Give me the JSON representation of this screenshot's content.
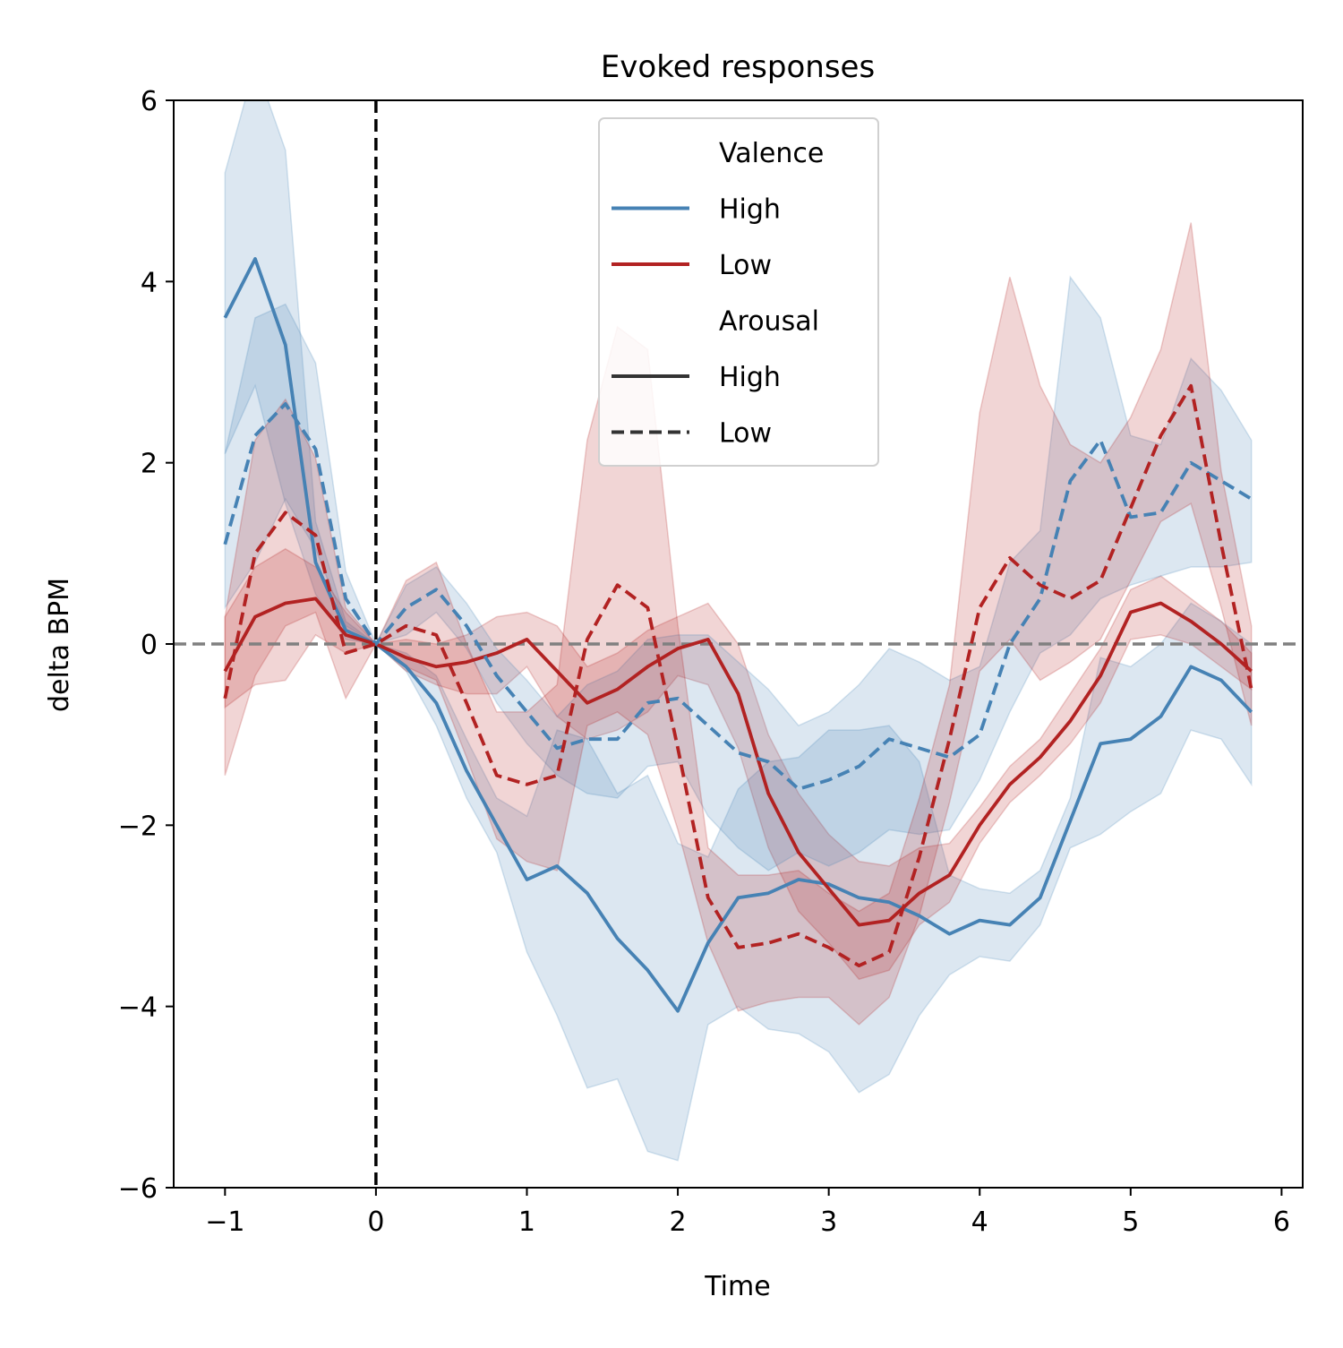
{
  "chart_data": {
    "type": "line",
    "title": "Evoked responses",
    "xlabel": "Time",
    "ylabel": "delta BPM",
    "xlim": [
      -1.34,
      6.14
    ],
    "ylim": [
      -6,
      6
    ],
    "xticks": [
      -1,
      0,
      1,
      2,
      3,
      4,
      5,
      6
    ],
    "xtick_labels": [
      "−1",
      "0",
      "1",
      "2",
      "3",
      "4",
      "5",
      "6"
    ],
    "yticks": [
      -6,
      -4,
      -2,
      0,
      2,
      4,
      6
    ],
    "ytick_labels": [
      "−6",
      "−4",
      "−2",
      "0",
      "2",
      "4",
      "6"
    ],
    "grid": false,
    "legend_position": "top-center",
    "reference_lines": [
      {
        "orientation": "horizontal",
        "value": 0,
        "style": "dashed",
        "color": "#808080"
      },
      {
        "orientation": "vertical",
        "value": 0,
        "style": "dashed",
        "color": "#000000"
      }
    ],
    "legend": {
      "sections": [
        {
          "heading": "Valence",
          "items": [
            {
              "label": "High",
              "color": "#4682b4",
              "style": "solid"
            },
            {
              "label": "Low",
              "color": "#b22222",
              "style": "solid"
            }
          ]
        },
        {
          "heading": "Arousal",
          "items": [
            {
              "label": "High",
              "color": "#333333",
              "style": "solid"
            },
            {
              "label": "Low",
              "color": "#333333",
              "style": "dashed"
            }
          ]
        }
      ]
    },
    "x": [
      -1.0,
      -0.8,
      -0.6,
      -0.4,
      -0.2,
      0.0,
      0.2,
      0.4,
      0.6,
      0.8,
      1.0,
      1.2,
      1.4,
      1.6,
      1.8,
      2.0,
      2.2,
      2.4,
      2.6,
      2.8,
      3.0,
      3.2,
      3.4,
      3.6,
      3.8,
      4.0,
      4.2,
      4.4,
      4.6,
      4.8,
      5.0,
      5.2,
      5.4,
      5.6,
      5.8
    ],
    "series": [
      {
        "valence": "High",
        "arousal": "High",
        "color": "#4682b4",
        "style": "solid",
        "values": [
          3.6,
          4.25,
          3.3,
          0.9,
          0.15,
          0.0,
          -0.25,
          -0.65,
          -1.4,
          -2.0,
          -2.6,
          -2.45,
          -2.75,
          -3.25,
          -3.6,
          -4.05,
          -3.3,
          -2.8,
          -2.75,
          -2.6,
          -2.65,
          -2.8,
          -2.85,
          -3.0,
          -3.2,
          -3.05,
          -3.1,
          -2.8,
          -1.95,
          -1.1,
          -1.05,
          -0.8,
          -0.25,
          -0.4,
          -0.75
        ],
        "lower": [
          2.1,
          2.85,
          1.55,
          0.55,
          0.05,
          0.0,
          -0.3,
          -0.9,
          -1.7,
          -2.3,
          -3.4,
          -4.1,
          -4.9,
          -4.8,
          -5.6,
          -5.7,
          -4.2,
          -4.0,
          -4.25,
          -4.3,
          -4.5,
          -4.95,
          -4.75,
          -4.1,
          -3.65,
          -3.45,
          -3.5,
          -3.1,
          -2.25,
          -2.1,
          -1.85,
          -1.65,
          -0.95,
          -1.05,
          -1.55
        ],
        "upper": [
          5.2,
          6.4,
          5.45,
          1.35,
          0.25,
          0.0,
          -0.1,
          -0.35,
          -1.05,
          -1.7,
          -1.9,
          -0.95,
          -1.05,
          -1.65,
          -1.45,
          -2.2,
          -2.35,
          -1.6,
          -1.3,
          -1.25,
          -0.95,
          -0.95,
          -0.9,
          -1.3,
          -2.55,
          -2.7,
          -2.75,
          -2.5,
          -1.7,
          -0.15,
          -0.25,
          0.0,
          0.45,
          0.25,
          0.0
        ]
      },
      {
        "valence": "Low",
        "arousal": "High",
        "color": "#b22222",
        "style": "solid",
        "values": [
          -0.3,
          0.3,
          0.45,
          0.5,
          0.1,
          0.0,
          -0.15,
          -0.25,
          -0.2,
          -0.1,
          0.05,
          -0.3,
          -0.65,
          -0.5,
          -0.25,
          -0.05,
          0.05,
          -0.55,
          -1.65,
          -2.3,
          -2.7,
          -3.1,
          -3.05,
          -2.75,
          -2.55,
          -2.0,
          -1.55,
          -1.25,
          -0.85,
          -0.35,
          0.35,
          0.45,
          0.25,
          0.0,
          -0.3
        ],
        "lower": [
          -0.7,
          -0.45,
          -0.4,
          0.1,
          -0.1,
          0.0,
          -0.3,
          -0.45,
          -0.55,
          -0.55,
          -0.25,
          -0.8,
          -1.05,
          -0.95,
          -0.75,
          -0.35,
          -0.45,
          -1.15,
          -2.25,
          -2.95,
          -3.3,
          -3.7,
          -3.6,
          -3.1,
          -2.85,
          -2.2,
          -1.75,
          -1.45,
          -1.1,
          -0.65,
          0.05,
          0.1,
          0.0,
          -0.25,
          -0.5
        ],
        "upper": [
          0.3,
          0.85,
          1.05,
          0.85,
          0.35,
          0.0,
          0.05,
          0.0,
          0.1,
          0.3,
          0.35,
          0.2,
          -0.25,
          -0.1,
          0.15,
          0.3,
          0.45,
          0.0,
          -1.0,
          -1.65,
          -2.1,
          -2.4,
          -2.45,
          -2.25,
          -2.2,
          -1.8,
          -1.35,
          -1.05,
          -0.55,
          -0.05,
          0.6,
          0.75,
          0.5,
          0.25,
          -0.1
        ]
      },
      {
        "valence": "High",
        "arousal": "Low",
        "color": "#4682b4",
        "style": "dashed",
        "values": [
          1.1,
          2.3,
          2.65,
          2.15,
          0.5,
          0.0,
          0.4,
          0.6,
          0.2,
          -0.35,
          -0.75,
          -1.15,
          -1.05,
          -1.05,
          -0.65,
          -0.6,
          -0.9,
          -1.2,
          -1.3,
          -1.6,
          -1.5,
          -1.35,
          -1.05,
          -1.15,
          -1.25,
          -1.0,
          0.0,
          0.5,
          1.8,
          2.25,
          1.4,
          1.45,
          2.0,
          1.8,
          1.6
        ],
        "lower": [
          0.4,
          0.9,
          1.6,
          1.05,
          0.2,
          0.0,
          0.1,
          0.35,
          -0.05,
          -0.65,
          -1.1,
          -1.45,
          -1.65,
          -1.7,
          -1.35,
          -1.3,
          -1.9,
          -2.25,
          -2.5,
          -2.3,
          -2.45,
          -2.3,
          -2.05,
          -2.1,
          -2.05,
          -1.5,
          -0.75,
          -0.1,
          0.1,
          0.5,
          0.65,
          0.75,
          0.85,
          0.85,
          0.9
        ],
        "upper": [
          2.1,
          3.6,
          3.75,
          3.1,
          0.8,
          0.0,
          0.65,
          0.85,
          0.45,
          -0.05,
          -0.4,
          -0.8,
          -0.45,
          -0.3,
          0.05,
          0.1,
          0.1,
          -0.2,
          -0.5,
          -0.9,
          -0.75,
          -0.45,
          -0.05,
          -0.2,
          -0.4,
          -0.25,
          0.9,
          1.25,
          4.05,
          3.6,
          2.3,
          2.2,
          3.15,
          2.8,
          2.25
        ]
      },
      {
        "valence": "Low",
        "arousal": "Low",
        "color": "#b22222",
        "style": "dashed",
        "values": [
          -0.6,
          1.0,
          1.45,
          1.2,
          -0.1,
          0.0,
          0.2,
          0.1,
          -0.65,
          -1.45,
          -1.55,
          -1.45,
          0.05,
          0.65,
          0.4,
          -1.15,
          -2.8,
          -3.35,
          -3.3,
          -3.2,
          -3.35,
          -3.55,
          -3.4,
          -2.35,
          -1.05,
          0.4,
          0.95,
          0.65,
          0.5,
          0.7,
          1.5,
          2.3,
          2.85,
          1.1,
          -0.5
        ],
        "lower": [
          -1.45,
          -0.35,
          0.2,
          0.35,
          -0.6,
          0.0,
          -0.25,
          -0.4,
          -1.25,
          -2.15,
          -2.4,
          -2.5,
          -0.9,
          -0.75,
          -1.0,
          -2.05,
          -3.3,
          -4.05,
          -3.95,
          -3.9,
          -3.9,
          -4.2,
          -3.9,
          -3.0,
          -1.75,
          -0.3,
          0.05,
          -0.4,
          -0.2,
          0.05,
          0.7,
          1.35,
          1.55,
          0.4,
          -0.9
        ],
        "upper": [
          0.3,
          2.25,
          2.7,
          2.05,
          0.4,
          0.0,
          0.7,
          0.9,
          0.0,
          -0.75,
          -0.75,
          -0.45,
          2.25,
          3.5,
          3.25,
          0.2,
          -2.25,
          -2.55,
          -2.55,
          -2.5,
          -2.75,
          -2.95,
          -2.75,
          -1.7,
          -0.45,
          2.55,
          4.05,
          2.85,
          2.2,
          2.0,
          2.5,
          3.25,
          4.65,
          1.9,
          0.2
        ]
      }
    ]
  }
}
